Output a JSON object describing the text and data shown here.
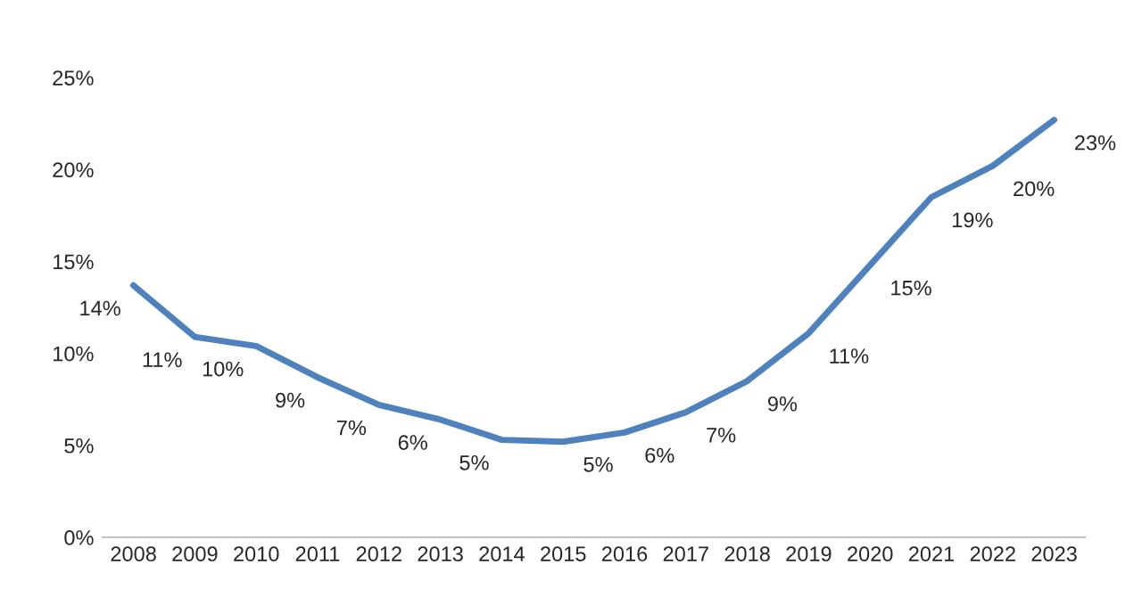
{
  "chart_data": {
    "type": "line",
    "categories": [
      "2008",
      "2009",
      "2010",
      "2011",
      "2012",
      "2013",
      "2014",
      "2015",
      "2016",
      "2017",
      "2018",
      "2019",
      "2020",
      "2021",
      "2022",
      "2023"
    ],
    "series": [
      {
        "color": "#4f81bd",
        "values": [
          13.7,
          10.9,
          10.4,
          8.7,
          7.2,
          6.4,
          5.3,
          5.2,
          5.7,
          6.8,
          8.5,
          11.1,
          14.8,
          18.5,
          20.2,
          22.7
        ],
        "value_labels": [
          "14%",
          "11%",
          "10%",
          "9%",
          "7%",
          "6%",
          "5%",
          "5%",
          "6%",
          "7%",
          "9%",
          "11%",
          "15%",
          "19%",
          "20%",
          "23%"
        ]
      }
    ],
    "ylim": [
      0,
      25
    ],
    "yticks": [
      {
        "value": 0,
        "label": "0%"
      },
      {
        "value": 5,
        "label": "5%"
      },
      {
        "value": 10,
        "label": "10%"
      },
      {
        "value": 15,
        "label": "15%"
      },
      {
        "value": 20,
        "label": "20%"
      },
      {
        "value": 25,
        "label": "25%"
      }
    ],
    "grid": false,
    "marker": "none",
    "line_style": "solid"
  }
}
